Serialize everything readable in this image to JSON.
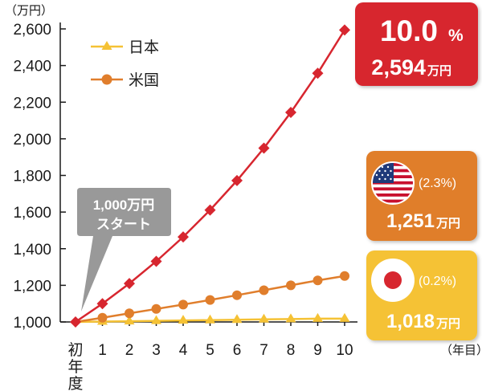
{
  "chart_data": {
    "type": "line",
    "y_unit": "（万円）",
    "x_unit": "（年目）",
    "categories": [
      "初年度",
      "1",
      "2",
      "3",
      "4",
      "5",
      "6",
      "7",
      "8",
      "9",
      "10"
    ],
    "ylim": [
      1000,
      2600
    ],
    "yticks": [
      1000,
      1200,
      1400,
      1600,
      1800,
      2000,
      2200,
      2400,
      2600
    ],
    "ytick_labels": [
      "1,000",
      "1,200",
      "1,400",
      "1,600",
      "1,800",
      "2,000",
      "2,200",
      "2,400",
      "2,600"
    ],
    "series": [
      {
        "name": "",
        "color": "#d7262f",
        "marker": "diamond",
        "values": [
          1000,
          1100,
          1210,
          1331,
          1464,
          1611,
          1772,
          1949,
          2144,
          2358,
          2594
        ]
      },
      {
        "name": "米国",
        "color": "#e07e2c",
        "marker": "circle",
        "values": [
          1000,
          1023,
          1047,
          1071,
          1095,
          1120,
          1146,
          1173,
          1200,
          1227,
          1251
        ]
      },
      {
        "name": "日本",
        "color": "#f5c235",
        "marker": "triangle",
        "values": [
          1000,
          1002,
          1004,
          1006,
          1008,
          1010,
          1012,
          1014,
          1016,
          1018,
          1018
        ]
      }
    ],
    "legend": {
      "placement": "top-left",
      "items": [
        "日本",
        "米国"
      ]
    },
    "grid": false
  },
  "callouts": {
    "start": {
      "line1": "1,000万円",
      "line2": "スタート",
      "color": "#999999"
    },
    "red": {
      "rate": "10.0",
      "rate_unit": "%",
      "amount": "2,594",
      "amount_unit": "万円",
      "color": "#d7262f"
    },
    "us": {
      "icon": "us-flag-icon",
      "rate": "(2.3%)",
      "amount": "1,251",
      "amount_unit": "万円",
      "color": "#e07e2c"
    },
    "jp": {
      "icon": "japan-flag-icon",
      "rate": "(0.2%)",
      "amount": "1,018",
      "amount_unit": "万円",
      "color": "#f5c235"
    }
  }
}
